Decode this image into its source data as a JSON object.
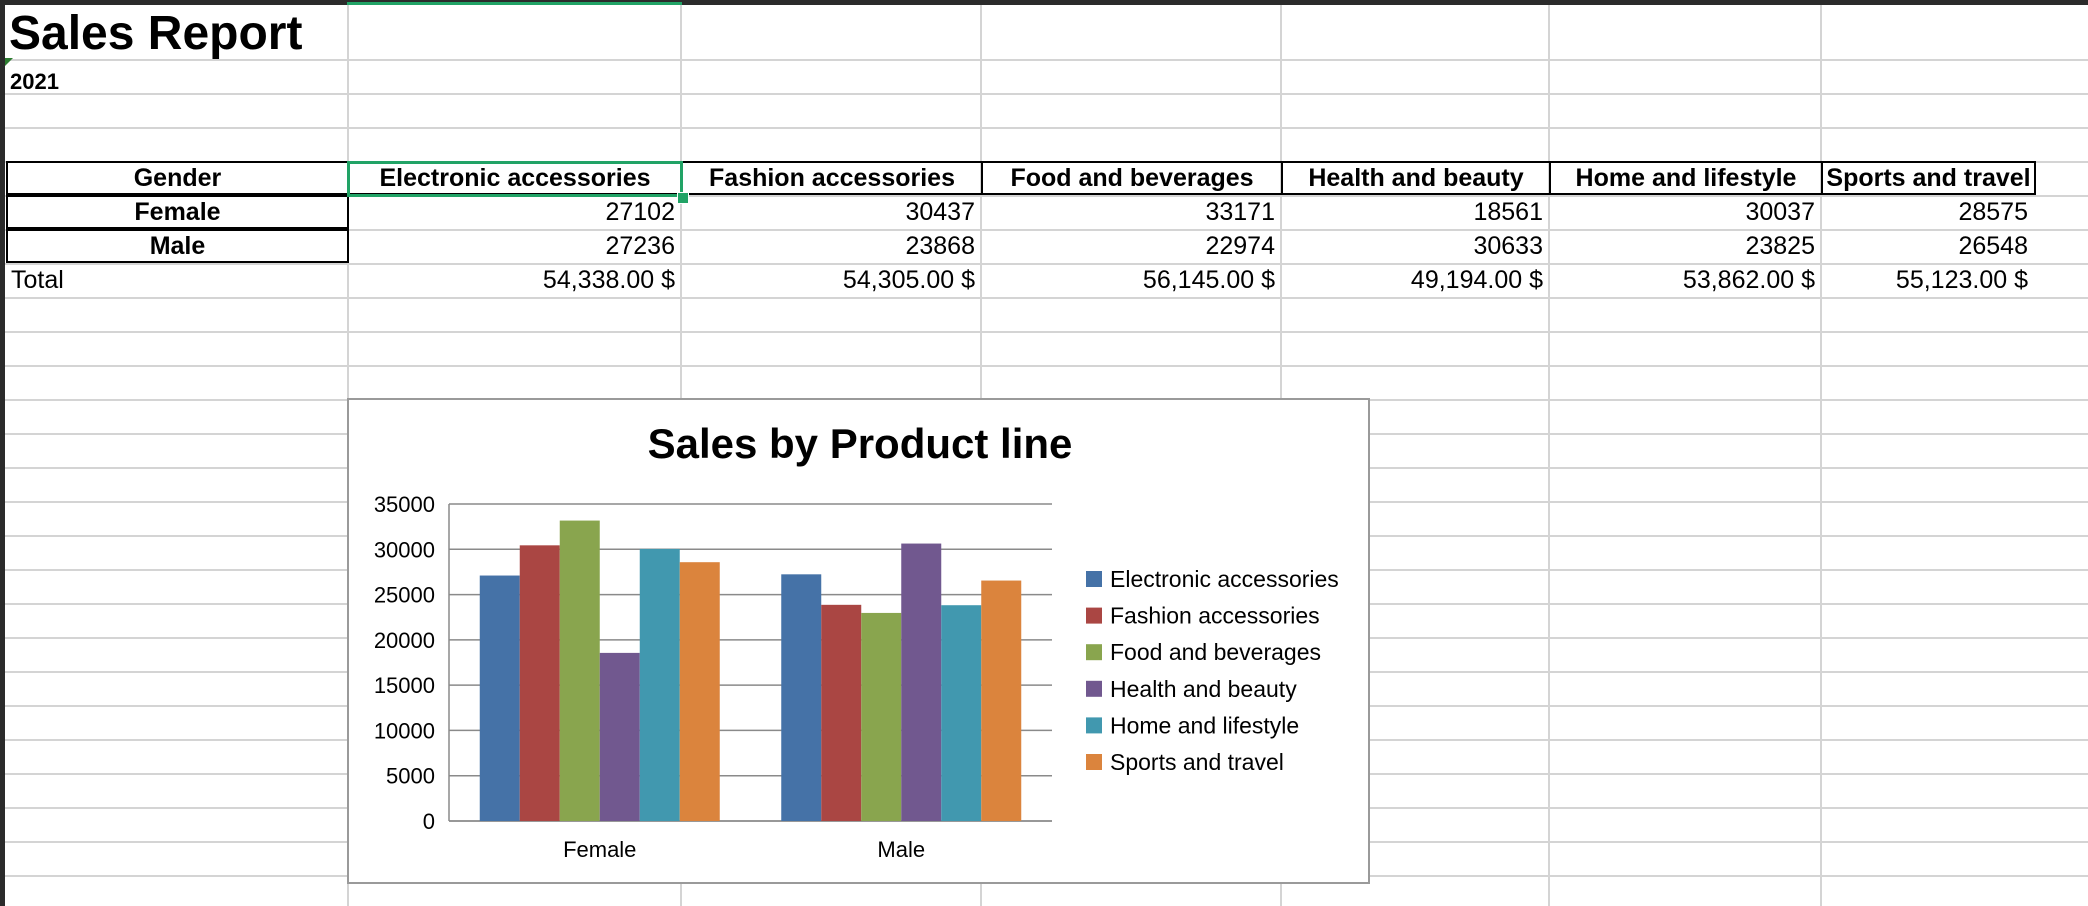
{
  "sheet": {
    "title": "Sales Report",
    "year": "2021",
    "header_label": "Gender",
    "product_lines": [
      "Electronic accessories",
      "Fashion accessories",
      "Food and beverages",
      "Health and beauty",
      "Home and lifestyle",
      "Sports and travel"
    ],
    "rows": [
      {
        "label": "Female",
        "values": [
          "27102",
          "30437",
          "33171",
          "18561",
          "30037",
          "28575"
        ]
      },
      {
        "label": "Male",
        "values": [
          "27236",
          "23868",
          "22974",
          "30633",
          "23825",
          "26548"
        ]
      }
    ],
    "total_label": "Total",
    "totals": [
      "54,338.00 $",
      "54,305.00 $",
      "56,145.00 $",
      "49,194.00 $",
      "53,862.00 $",
      "55,123.00 $"
    ]
  },
  "chart_data": {
    "type": "bar",
    "title": "Sales by Product line",
    "xlabel": "",
    "ylabel": "",
    "categories": [
      "Female",
      "Male"
    ],
    "ylim": [
      0,
      35000
    ],
    "yticks": [
      0,
      5000,
      10000,
      15000,
      20000,
      25000,
      30000,
      35000
    ],
    "grid": true,
    "legend_position": "right",
    "series": [
      {
        "name": "Electronic accessories",
        "values": [
          27102,
          27236
        ],
        "color": "#4572a7"
      },
      {
        "name": "Fashion accessories",
        "values": [
          30437,
          23868
        ],
        "color": "#aa4643"
      },
      {
        "name": "Food and beverages",
        "values": [
          33171,
          22974
        ],
        "color": "#89a54e"
      },
      {
        "name": "Health and beauty",
        "values": [
          18561,
          30633
        ],
        "color": "#71588f"
      },
      {
        "name": "Home and lifestyle",
        "values": [
          30037,
          23825
        ],
        "color": "#4198af"
      },
      {
        "name": "Sports and travel",
        "values": [
          28575,
          26548
        ],
        "color": "#db843d"
      }
    ]
  },
  "colors": {
    "selection": "#21a366",
    "gridline": "#d4d4d4",
    "window_frame": "#2b2b2b"
  }
}
